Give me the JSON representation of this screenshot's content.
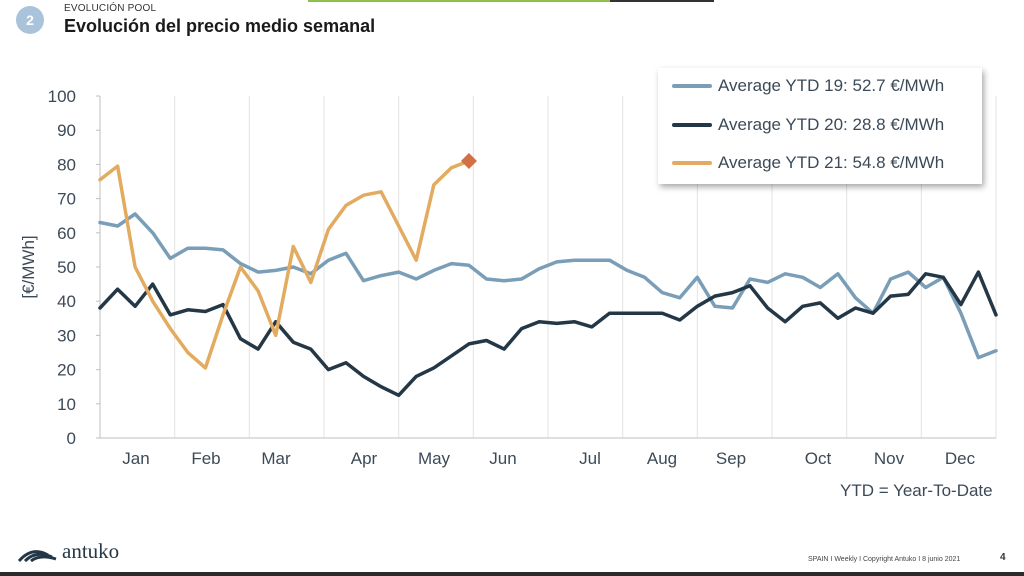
{
  "header": {
    "section_number": "2",
    "kicker": "EVOLUCIÓN POOL",
    "title": "Evolución del precio medio semanal"
  },
  "chart_data": {
    "type": "line",
    "ylabel": "[€/MWh]",
    "ylim": [
      0,
      100
    ],
    "yticks": [
      "0",
      "10",
      "20",
      "30",
      "40",
      "50",
      "60",
      "70",
      "80",
      "90",
      "100"
    ],
    "x_tick_labels": [
      "Jan",
      "Feb",
      "Mar",
      "Apr",
      "May",
      "Jun",
      "Jul",
      "Aug",
      "Sep",
      "Oct",
      "Nov",
      "Dec"
    ],
    "grid": "vertical",
    "legend_position": "top-right",
    "series": [
      {
        "name": "Average YTD 19: 52.7 €/MWh",
        "color": "#7a9eb8",
        "values": [
          63,
          62,
          65.5,
          60,
          52.5,
          55.5,
          55.5,
          55,
          51,
          48.5,
          49,
          50,
          48,
          52,
          54,
          46,
          47.5,
          48.5,
          46.5,
          49,
          51,
          50.5,
          46.5,
          46,
          46.5,
          49.5,
          51.5,
          52,
          52,
          52,
          49,
          47,
          42.5,
          41,
          47,
          38.5,
          38,
          46.5,
          45.5,
          48,
          47,
          44,
          48,
          41,
          36.5,
          46.5,
          48.5,
          44,
          47,
          36.5,
          23.5,
          25.5
        ]
      },
      {
        "name": "Average YTD 20: 28.8 €/MWh",
        "color": "#243746",
        "values": [
          38,
          43.5,
          38.5,
          45,
          36,
          37.5,
          37,
          39,
          29,
          26,
          34,
          28,
          26,
          20,
          22,
          18,
          15,
          12.5,
          18,
          20.5,
          24,
          27.5,
          28.5,
          26,
          32,
          34,
          33.5,
          34,
          32.5,
          36.5,
          36.5,
          36.5,
          36.5,
          34.5,
          38.5,
          41.5,
          42.5,
          44.5,
          38,
          34,
          38.5,
          39.5,
          35,
          38,
          36.5,
          41.5,
          42,
          48,
          47,
          39,
          48.5,
          36
        ]
      },
      {
        "name": "Average YTD 21: 54.8 €/MWh",
        "color": "#e2ab5f",
        "values": [
          75.5,
          79.5,
          50,
          40,
          32,
          25,
          20.5,
          36,
          50,
          43,
          30,
          56,
          45.5,
          61,
          68,
          71,
          72,
          62,
          52,
          74,
          79,
          81
        ]
      }
    ],
    "marker": {
      "series_index": 2,
      "point_index": 21,
      "shape": "diamond",
      "color": "#d16f45"
    }
  },
  "notes": {
    "ytd": "YTD = Year-To-Date"
  },
  "footer": {
    "brand": "antuko",
    "text": "SPAIN I Weekly I Copyright Antuko I 8 junio 2021",
    "page": "4"
  }
}
